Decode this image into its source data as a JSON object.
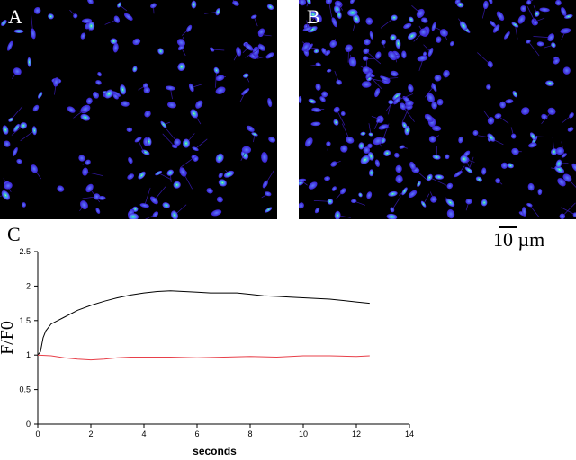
{
  "figure": {
    "panel_labels": {
      "a": "A",
      "b": "B",
      "c": "C"
    },
    "image_colors": {
      "background": "#000000",
      "low": "#3a1ecf",
      "mid": "#5b7bff",
      "high": "#22d6c8",
      "peak": "#f4f27a"
    },
    "scale_label": "10 µm"
  },
  "chart_data": {
    "type": "line",
    "xlabel": "seconds",
    "ylabel": "F/F0",
    "xlim": [
      0,
      14
    ],
    "ylim": [
      0,
      2.5
    ],
    "xticks": [
      0,
      2,
      4,
      6,
      8,
      10,
      12,
      14
    ],
    "yticks": [
      0,
      0.5,
      1,
      1.5,
      2,
      2.5
    ],
    "grid": false,
    "legend": "none",
    "series": [
      {
        "color": "#000000",
        "x": [
          0,
          0.1,
          0.2,
          0.3,
          0.5,
          1,
          1.5,
          2,
          2.5,
          3,
          3.5,
          4,
          4.5,
          5,
          5.5,
          6,
          6.5,
          7,
          7.5,
          8,
          8.5,
          9,
          9.5,
          10,
          10.5,
          11,
          11.5,
          12,
          12.5
        ],
        "y": [
          1.0,
          1.05,
          1.25,
          1.35,
          1.45,
          1.55,
          1.65,
          1.72,
          1.78,
          1.83,
          1.87,
          1.9,
          1.92,
          1.93,
          1.92,
          1.91,
          1.9,
          1.9,
          1.9,
          1.88,
          1.86,
          1.85,
          1.84,
          1.83,
          1.82,
          1.81,
          1.79,
          1.77,
          1.75
        ]
      },
      {
        "color": "#e8404a",
        "x": [
          0,
          0.5,
          1,
          1.5,
          2,
          2.5,
          3,
          3.5,
          4,
          5,
          6,
          7,
          8,
          9,
          10,
          11,
          12,
          12.5
        ],
        "y": [
          1.0,
          0.99,
          0.96,
          0.94,
          0.93,
          0.94,
          0.96,
          0.97,
          0.97,
          0.97,
          0.96,
          0.97,
          0.98,
          0.97,
          0.99,
          0.99,
          0.98,
          0.99
        ]
      }
    ]
  }
}
